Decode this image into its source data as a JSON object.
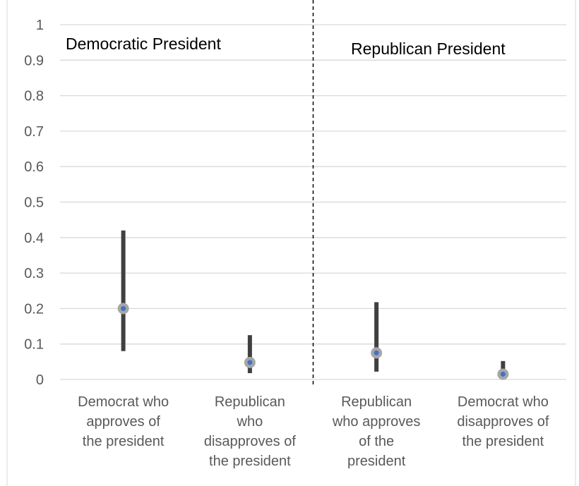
{
  "chart_data": {
    "type": "scatter",
    "title": "",
    "xlabel": "",
    "ylabel": "",
    "ylim": [
      0,
      1
    ],
    "y_ticks": [
      "0",
      "0.1",
      "0.2",
      "0.3",
      "0.4",
      "0.5",
      "0.6",
      "0.7",
      "0.8",
      "0.9",
      "1"
    ],
    "grid": true,
    "panels": [
      "Democratic President",
      "Republican President"
    ],
    "categories": [
      [
        "Democrat who",
        "approves of",
        "the president"
      ],
      [
        "Republican",
        "who",
        "disapproves of",
        "the president"
      ],
      [
        "Republican",
        "who approves",
        "of the",
        "president"
      ],
      [
        "Democrat who",
        "disapproves of",
        "the president"
      ]
    ],
    "series": [
      {
        "points": [
          {
            "value": 0.2,
            "low": 0.08,
            "high": 0.42
          },
          {
            "value": 0.048,
            "low": 0.018,
            "high": 0.125
          },
          {
            "value": 0.075,
            "low": 0.022,
            "high": 0.218
          },
          {
            "value": 0.015,
            "low": 0.005,
            "high": 0.052
          }
        ]
      }
    ],
    "colors": {
      "marker_fill": "#4472c4",
      "marker_ring": "#a6a6a6",
      "error_bar": "#404040",
      "grid": "#d9d9d9",
      "divider": "#000000",
      "frame": "#d9d9d9"
    }
  }
}
